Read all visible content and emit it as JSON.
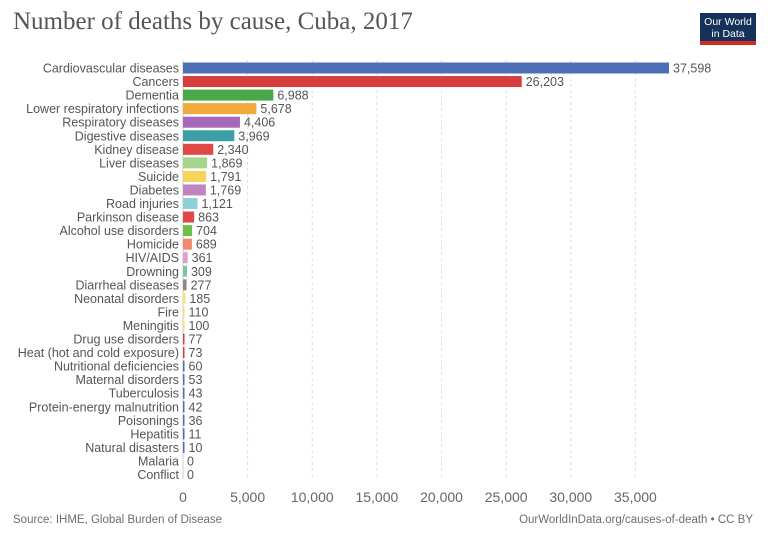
{
  "title": "Number of deaths by cause, Cuba, 2017",
  "logo": {
    "line1": "Our World",
    "line2": "in Data"
  },
  "footer": {
    "source": "Source: IHME, Global Burden of Disease",
    "credit": "OurWorldInData.org/causes-of-death • CC BY"
  },
  "chart_data": {
    "type": "bar",
    "orientation": "horizontal",
    "title": "Number of deaths by cause, Cuba, 2017",
    "xlim": [
      0,
      37598
    ],
    "x_ticks": [
      0,
      5000,
      10000,
      15000,
      20000,
      25000,
      30000,
      35000
    ],
    "x_tick_labels": [
      "0",
      "5,000",
      "10,000",
      "15,000",
      "20,000",
      "25,000",
      "30,000",
      "35,000"
    ],
    "grid": "vertical dashed",
    "categories": [
      "Cardiovascular diseases",
      "Cancers",
      "Dementia",
      "Lower respiratory infections",
      "Respiratory diseases",
      "Digestive diseases",
      "Kidney disease",
      "Liver diseases",
      "Suicide",
      "Diabetes",
      "Road injuries",
      "Parkinson disease",
      "Alcohol use disorders",
      "Homicide",
      "HIV/AIDS",
      "Drowning",
      "Diarrheal diseases",
      "Neonatal disorders",
      "Fire",
      "Meningitis",
      "Drug use disorders",
      "Heat (hot and cold exposure)",
      "Nutritional deficiencies",
      "Maternal disorders",
      "Tuberculosis",
      "Protein-energy malnutrition",
      "Poisonings",
      "Hepatitis",
      "Natural disasters",
      "Malaria",
      "Conflict"
    ],
    "values": [
      37598,
      26203,
      6988,
      5678,
      4406,
      3969,
      2340,
      1869,
      1791,
      1769,
      1121,
      863,
      704,
      689,
      361,
      309,
      277,
      185,
      110,
      100,
      77,
      73,
      60,
      53,
      43,
      42,
      36,
      11,
      10,
      0,
      0
    ],
    "value_labels": [
      "37,598",
      "26,203",
      "6,988",
      "5,678",
      "4,406",
      "3,969",
      "2,340",
      "1,869",
      "1,791",
      "1,769",
      "1,121",
      "863",
      "704",
      "689",
      "361",
      "309",
      "277",
      "185",
      "110",
      "100",
      "77",
      "73",
      "60",
      "53",
      "43",
      "42",
      "36",
      "11",
      "10",
      "0",
      "0"
    ],
    "colors": [
      "#4c6fb5",
      "#d63e3e",
      "#4aa84a",
      "#f2a93b",
      "#a469b8",
      "#3d9ea6",
      "#e04848",
      "#a6d68e",
      "#f5d45a",
      "#c084c0",
      "#8ed1d6",
      "#e04848",
      "#6fbf4a",
      "#f08a6b",
      "#d9a3d0",
      "#7bc89c",
      "#8a8a8a",
      "#f5e27a",
      "#f5e27a",
      "#f5e27a",
      "#d63e3e",
      "#d63e3e",
      "#4c6fb5",
      "#4c6fb5",
      "#4c6fb5",
      "#4c6fb5",
      "#4c6fb5",
      "#4c6fb5",
      "#4c6fb5",
      "#4c6fb5",
      "#4c6fb5"
    ]
  }
}
